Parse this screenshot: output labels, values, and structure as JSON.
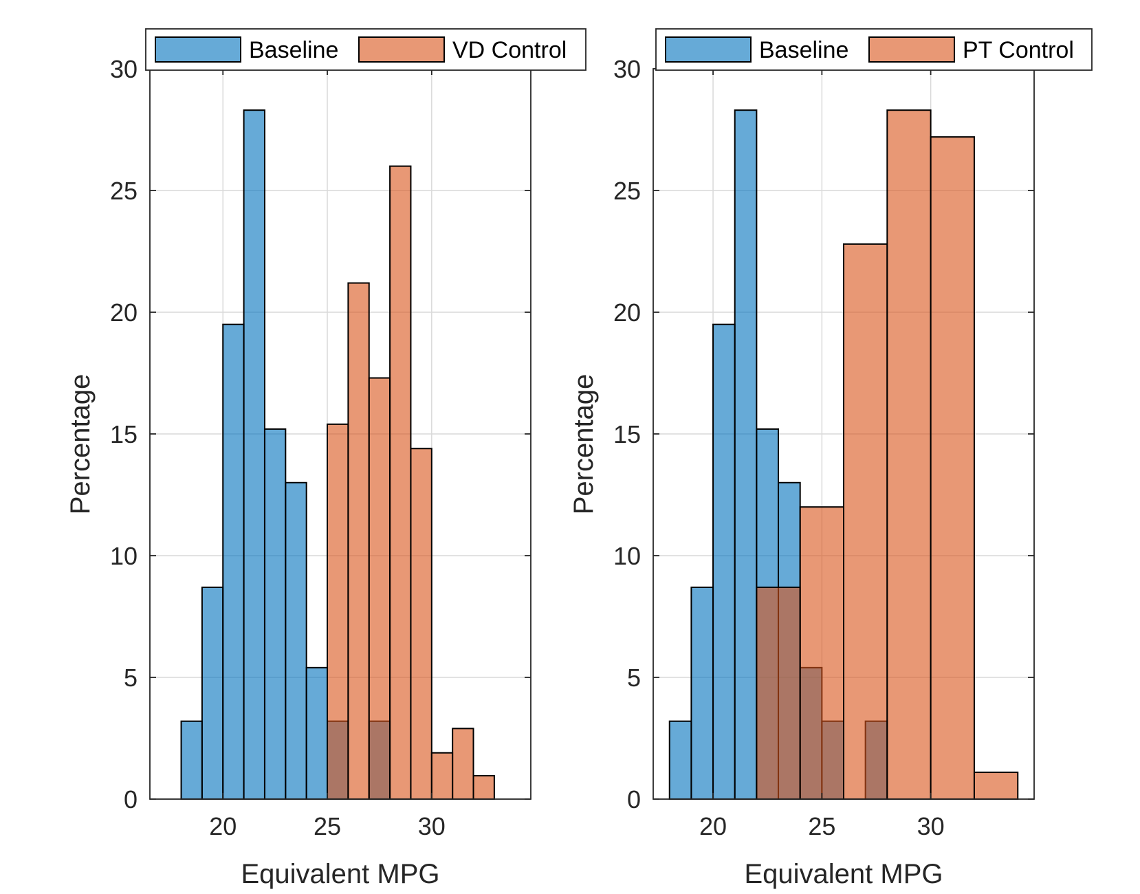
{
  "colors": {
    "baseline": "#0072BD",
    "control": "#D95319",
    "grid": "#d9d9d9",
    "axis": "#262626"
  },
  "chart_data": [
    {
      "type": "bar",
      "subtype": "overlapping-histogram",
      "xlabel": "Equivalent MPG",
      "ylabel": "Percentage",
      "xlim": [
        16.5,
        34.75
      ],
      "ylim": [
        0,
        30
      ],
      "xticks": [
        20,
        25,
        30
      ],
      "yticks": [
        0,
        5,
        10,
        15,
        20,
        25,
        30
      ],
      "grid": true,
      "legend_position": "top",
      "legend": [
        "Baseline",
        "VD Control"
      ],
      "series": [
        {
          "name": "Baseline",
          "edges": [
            18,
            19,
            20,
            21,
            22,
            23,
            24,
            25,
            26,
            27,
            28
          ],
          "values": [
            3.2,
            8.7,
            19.5,
            28.3,
            15.2,
            13.0,
            5.4,
            3.2,
            0,
            3.2
          ]
        },
        {
          "name": "VD Control",
          "edges": [
            25,
            26,
            27,
            28,
            29,
            30,
            31,
            32,
            33
          ],
          "values": [
            15.4,
            21.2,
            17.3,
            26.0,
            14.4,
            1.9,
            2.9,
            0.96
          ]
        }
      ]
    },
    {
      "type": "bar",
      "subtype": "overlapping-histogram",
      "xlabel": "Equivalent MPG",
      "ylabel": "Percentage",
      "xlim": [
        17.25,
        34.75
      ],
      "ylim": [
        0,
        30
      ],
      "xticks": [
        20,
        25,
        30
      ],
      "yticks": [
        0,
        5,
        10,
        15,
        20,
        25,
        30
      ],
      "grid": true,
      "legend_position": "top",
      "legend": [
        "Baseline",
        "PT Control"
      ],
      "series": [
        {
          "name": "Baseline",
          "edges": [
            18,
            19,
            20,
            21,
            22,
            23,
            24,
            25,
            26,
            27,
            28
          ],
          "values": [
            3.2,
            8.7,
            19.5,
            28.3,
            15.2,
            13.0,
            5.4,
            3.2,
            0,
            3.2
          ]
        },
        {
          "name": "PT Control",
          "edges": [
            22,
            24,
            26,
            28,
            30,
            32,
            34
          ],
          "values": [
            8.7,
            12.0,
            22.8,
            28.3,
            27.2,
            1.1
          ]
        }
      ]
    }
  ]
}
